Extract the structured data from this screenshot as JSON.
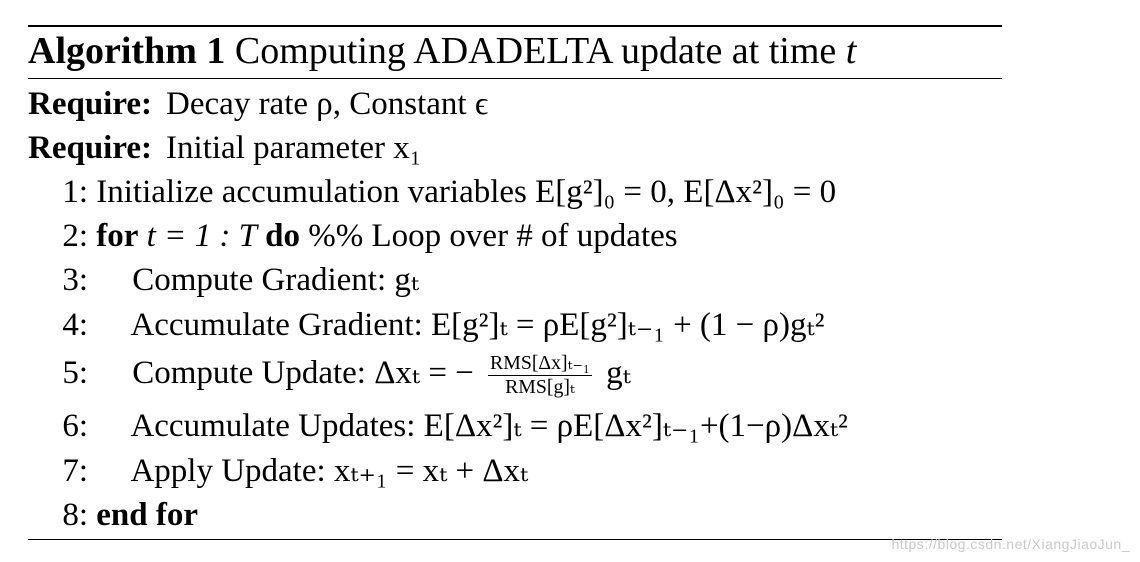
{
  "algorithm": {
    "label": "Algorithm 1",
    "title": "Computing ADADELTA update at time",
    "title_var": "t"
  },
  "requires": [
    {
      "keyword": "Require:",
      "text": "Decay rate ρ, Constant ϵ"
    },
    {
      "keyword": "Require:",
      "text": "Initial parameter x₁"
    }
  ],
  "steps": [
    {
      "num": "1:",
      "keyword": "",
      "text": "Initialize accumulation variables E[g²]₀ = 0, E[Δx²]₀ = 0"
    },
    {
      "num": "2:",
      "keyword": "for",
      "text": "t = 1 : T",
      "keyword2": "do",
      "comment": "%% Loop over # of updates"
    },
    {
      "num": "3:",
      "text": "Compute Gradient: gₜ"
    },
    {
      "num": "4:",
      "text": "Accumulate Gradient: E[g²]ₜ = ρE[g²]ₜ₋₁ + (1 − ρ)gₜ²"
    },
    {
      "num": "5:",
      "text_prefix": "Compute Update: Δxₜ = −",
      "frac_num": "RMS[Δx]ₜ₋₁",
      "frac_den": "RMS[g]ₜ",
      "text_suffix": "gₜ"
    },
    {
      "num": "6:",
      "text": "Accumulate Updates: E[Δx²]ₜ = ρE[Δx²]ₜ₋₁+(1−ρ)Δxₜ²"
    },
    {
      "num": "7:",
      "text": "Apply Update: xₜ₊₁ = xₜ + Δxₜ"
    },
    {
      "num": "8:",
      "keyword": "end for"
    }
  ],
  "watermark": "https://blog.csdn.net/XiangJiaoJun_"
}
